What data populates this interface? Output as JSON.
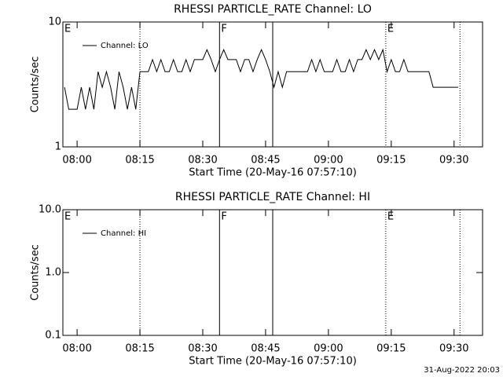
{
  "chart_data": [
    {
      "type": "line",
      "title": "RHESSI PARTICLE_RATE Channel: LO",
      "xlabel": "Start Time (20-May-16 07:57:10)",
      "ylabel": "Counts/sec",
      "x": [
        -3,
        -2,
        -1,
        0,
        1,
        2,
        3,
        4,
        5,
        6,
        7,
        8,
        9,
        10,
        11,
        12,
        13,
        14,
        15,
        16,
        17,
        18,
        19,
        20,
        21,
        22,
        23,
        24,
        25,
        26,
        27,
        28,
        29,
        30,
        31,
        32,
        33,
        34,
        35,
        36,
        37,
        38,
        39,
        40,
        41,
        42,
        43,
        44,
        45,
        46,
        47,
        48,
        49,
        50,
        51,
        52,
        53,
        54,
        55,
        56,
        57,
        58,
        59,
        60,
        61,
        62,
        63,
        64,
        65,
        66,
        67,
        68,
        69,
        70,
        71,
        72,
        73,
        74,
        75,
        76,
        77,
        78,
        79,
        80,
        81,
        82,
        83,
        84,
        85,
        86,
        87,
        88,
        89,
        90,
        91
      ],
      "series": [
        {
          "name": "Channel: LO",
          "color": "#000000",
          "values": [
            3,
            2,
            2,
            2,
            3,
            2,
            3,
            2,
            4,
            3,
            4,
            3,
            2,
            4,
            3,
            2,
            3,
            2,
            4,
            4,
            4,
            5,
            4,
            5,
            4,
            4,
            5,
            4,
            4,
            5,
            4,
            5,
            5,
            5,
            6,
            5,
            4,
            5,
            6,
            5,
            5,
            5,
            4,
            5,
            5,
            4,
            5,
            6,
            5,
            4,
            3,
            4,
            3,
            4,
            4,
            4,
            4,
            4,
            4,
            5,
            4,
            5,
            4,
            4,
            4,
            5,
            4,
            4,
            5,
            4,
            5,
            5,
            6,
            5,
            6,
            5,
            6,
            4,
            5,
            4,
            4,
            5,
            4,
            4,
            4,
            4,
            4,
            4,
            3,
            3,
            3,
            3,
            3,
            3,
            3
          ]
        }
      ],
      "xlim": [
        -3.4,
        96.8
      ],
      "xticks": [
        {
          "value": 0,
          "label": "08:00"
        },
        {
          "value": 15,
          "label": "08:15"
        },
        {
          "value": 30,
          "label": "08:30"
        },
        {
          "value": 45,
          "label": "08:45"
        },
        {
          "value": 60,
          "label": "09:00"
        },
        {
          "value": 75,
          "label": "09:15"
        },
        {
          "value": 90,
          "label": "09:30"
        }
      ],
      "ylim": [
        1,
        10
      ],
      "yticks": [
        1,
        10
      ],
      "log_y": true,
      "markers": [
        {
          "x": 15,
          "style": "dotted"
        },
        {
          "x": 34,
          "style": "solid"
        },
        {
          "x": 46.7,
          "style": "solid"
        },
        {
          "x": 73.7,
          "style": "dotted"
        },
        {
          "x": 91.4,
          "style": "dotted"
        }
      ],
      "annotations": [
        {
          "text": "E",
          "x": -3.4
        },
        {
          "text": "F",
          "x": 34
        },
        {
          "text": "E",
          "x": 73.7
        }
      ]
    },
    {
      "type": "line",
      "title": "RHESSI PARTICLE_RATE Channel: HI",
      "xlabel": "Start Time (20-May-16 07:57:10)",
      "ylabel": "Counts/sec",
      "x": [],
      "series": [
        {
          "name": "Channel: HI",
          "color": "#000000",
          "values": []
        }
      ],
      "xlim": [
        -3.4,
        96.8
      ],
      "xticks": [
        {
          "value": 0,
          "label": "08:00"
        },
        {
          "value": 15,
          "label": "08:15"
        },
        {
          "value": 30,
          "label": "08:30"
        },
        {
          "value": 45,
          "label": "08:45"
        },
        {
          "value": 60,
          "label": "09:00"
        },
        {
          "value": 75,
          "label": "09:15"
        },
        {
          "value": 90,
          "label": "09:30"
        }
      ],
      "ylim": [
        0.1,
        10
      ],
      "yticks": [
        0.1,
        {
          "value": 1,
          "label": "1.0"
        },
        {
          "value": 10,
          "label": "10.0"
        }
      ],
      "log_y": true,
      "markers": [
        {
          "x": 15,
          "style": "dotted"
        },
        {
          "x": 34,
          "style": "solid"
        },
        {
          "x": 46.7,
          "style": "solid"
        },
        {
          "x": 73.7,
          "style": "dotted"
        },
        {
          "x": 91.4,
          "style": "dotted"
        }
      ],
      "annotations": [
        {
          "text": "E",
          "x": -3.4
        },
        {
          "text": "F",
          "x": 34
        },
        {
          "text": "E",
          "x": 73.7
        }
      ]
    }
  ],
  "footer": "31-Aug-2022 20:03"
}
